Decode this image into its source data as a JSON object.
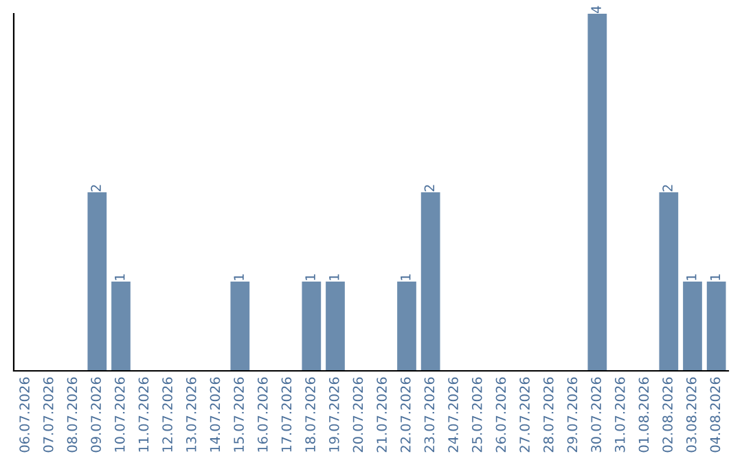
{
  "chart_data": {
    "type": "bar",
    "categories": [
      "06.07.2026",
      "07.07.2026",
      "08.07.2026",
      "09.07.2026",
      "10.07.2026",
      "11.07.2026",
      "12.07.2026",
      "13.07.2026",
      "14.07.2026",
      "15.07.2026",
      "16.07.2026",
      "17.07.2026",
      "18.07.2026",
      "19.07.2026",
      "20.07.2026",
      "21.07.2026",
      "22.07.2026",
      "23.07.2026",
      "24.07.2026",
      "25.07.2026",
      "26.07.2026",
      "27.07.2026",
      "28.07.2026",
      "29.07.2026",
      "30.07.2026",
      "31.07.2026",
      "01.08.2026",
      "02.08.2026",
      "03.08.2026",
      "04.08.2026"
    ],
    "values": [
      0,
      0,
      0,
      2,
      1,
      0,
      0,
      0,
      0,
      1,
      0,
      0,
      1,
      1,
      0,
      0,
      1,
      2,
      0,
      0,
      0,
      0,
      0,
      0,
      4,
      0,
      0,
      2,
      1,
      1
    ],
    "value_labels": [
      null,
      null,
      null,
      "2",
      "1",
      null,
      null,
      null,
      null,
      "1",
      null,
      null,
      "1",
      "1",
      null,
      null,
      "1",
      "2",
      null,
      null,
      null,
      null,
      null,
      null,
      "4",
      null,
      null,
      "2",
      "1",
      "1"
    ],
    "color": "#6b8cae",
    "ylim": [
      0,
      4
    ],
    "tick_labels": "x"
  }
}
